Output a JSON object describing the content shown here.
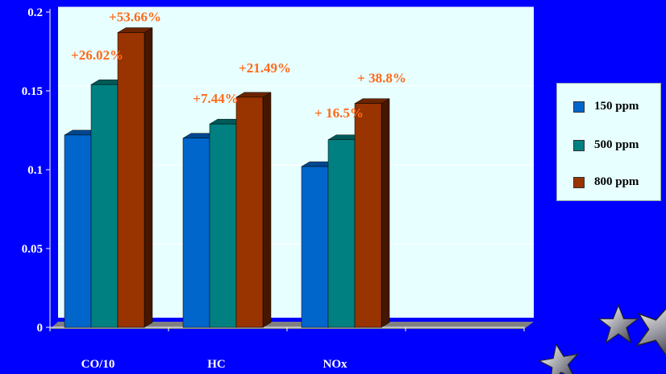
{
  "chart_data": {
    "type": "bar",
    "categories": [
      "CO/10",
      "HC",
      "NOx"
    ],
    "series": [
      {
        "name": "150 ppm",
        "values": [
          0.122,
          0.12,
          0.102
        ]
      },
      {
        "name": "500 ppm",
        "values": [
          0.154,
          0.129,
          0.119
        ]
      },
      {
        "name": "800 ppm",
        "values": [
          0.187,
          0.146,
          0.142
        ]
      }
    ],
    "ylim": [
      0,
      0.2
    ],
    "yticks": [
      0,
      0.05,
      0.1,
      0.15,
      0.2
    ],
    "ytick_labels": [
      "0",
      "0.05",
      "0.1",
      "0.15",
      "0.2"
    ],
    "annotations": [
      {
        "text": "+53.66%",
        "category": 0,
        "series": 2
      },
      {
        "text": "+26.02%",
        "category": 0,
        "series": 1
      },
      {
        "text": "+21.49%",
        "category": 1,
        "series": 2
      },
      {
        "text": "+7.44%",
        "category": 1,
        "series": 1
      },
      {
        "text": "+ 38.8%",
        "category": 2,
        "series": 2
      },
      {
        "text": "+ 16.5%",
        "category": 2,
        "series": 1
      }
    ],
    "legend_position": "right",
    "grid": true,
    "colors": {
      "background": "#0000ff",
      "plot_area": "#e8ffff",
      "series": [
        "#0066cc",
        "#008080",
        "#993300"
      ],
      "annotation": "#ff6a1a"
    }
  },
  "legend": {
    "items": [
      "150 ppm",
      "500 ppm",
      "800 ppm"
    ]
  }
}
